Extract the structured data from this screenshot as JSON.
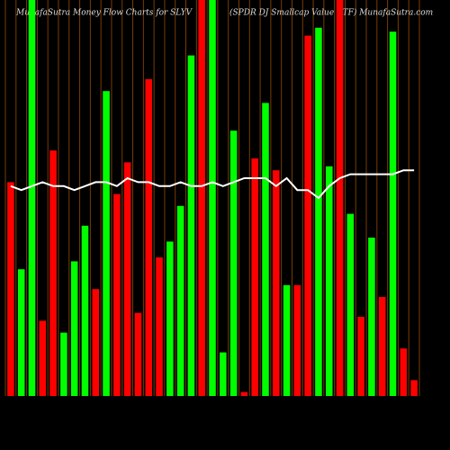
{
  "chart_data": {
    "type": "bar",
    "title": "MunafaSutra  Money Flow  Charts for SLYV",
    "subtitle": "(SPDR DJ Smallcap Value   ETF) MunafaSutra.com",
    "categories": [
      null,
      null,
      null,
      null,
      null,
      null,
      null,
      null,
      null,
      null,
      null,
      null,
      null,
      null,
      null,
      null,
      null,
      null,
      null,
      null,
      null,
      null,
      null,
      null,
      null,
      null,
      null,
      null,
      null,
      null,
      null,
      null,
      null,
      null,
      null,
      null,
      null,
      null,
      null
    ],
    "ylim": [
      0,
      100
    ],
    "series": [
      {
        "values": [
          54,
          32,
          100,
          19,
          62,
          16,
          34,
          43,
          27,
          77,
          51,
          59,
          21,
          80,
          35,
          39,
          48,
          86,
          100,
          100,
          11,
          67,
          1,
          60,
          74,
          57,
          28,
          28,
          91,
          93,
          58,
          100,
          46,
          20,
          40,
          25,
          92,
          12,
          4
        ],
        "colors": [
          "#ff0000",
          "#00ff00",
          "#00ff00",
          "#ff0000",
          "#ff0000",
          "#00ff00",
          "#00ff00",
          "#00ff00",
          "#ff0000",
          "#00ff00",
          "#ff0000",
          "#ff0000",
          "#ff0000",
          "#ff0000",
          "#ff0000",
          "#00ff00",
          "#00ff00",
          "#00ff00",
          "#ff0000",
          "#00ff00",
          "#00ff00",
          "#00ff00",
          "#ff0000",
          "#ff0000",
          "#00ff00",
          "#ff0000",
          "#00ff00",
          "#ff0000",
          "#ff0000",
          "#00ff00",
          "#00ff00",
          "#ff0000",
          "#00ff00",
          "#ff0000",
          "#00ff00",
          "#ff0000",
          "#00ff00",
          "#ff0000",
          "#ff0000"
        ]
      },
      {
        "type": "line",
        "color": "#ffffff",
        "values": [
          53,
          52,
          53,
          54,
          53,
          53,
          52,
          53,
          54,
          54,
          53,
          55,
          54,
          54,
          53,
          53,
          54,
          53,
          53,
          54,
          53,
          54,
          55,
          55,
          55,
          53,
          55,
          52,
          52,
          50,
          53,
          55,
          56,
          56,
          56,
          56,
          56,
          57,
          57
        ]
      }
    ]
  }
}
